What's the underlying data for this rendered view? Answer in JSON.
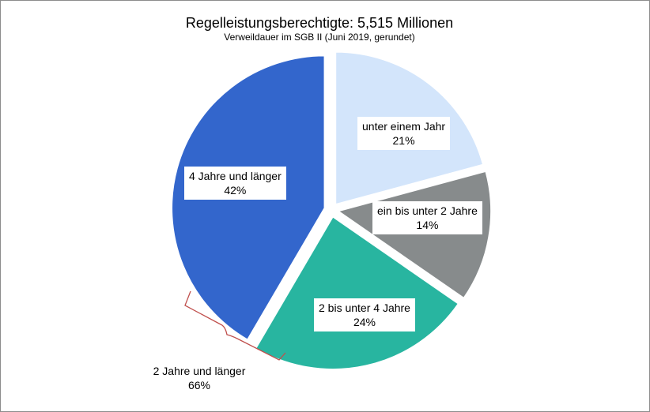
{
  "chart_data": {
    "type": "pie",
    "title": "Regelleistungsberechtigte: 5,515 Millionen",
    "subtitle": "Verweildauer  im SGB II (Juni 2019, gerundet)",
    "slices": [
      {
        "label": "unter einem Jahr",
        "value": 21,
        "value_label": "21%",
        "color": "#d3e5fb"
      },
      {
        "label": "ein bis unter 2 Jahre",
        "value": 14,
        "value_label": "14%",
        "color": "#878b8c"
      },
      {
        "label": "2 bis unter 4 Jahre",
        "value": 24,
        "value_label": "24%",
        "color": "#28b5a0"
      },
      {
        "label": "4 Jahre und länger",
        "value": 42,
        "value_label": "42%",
        "color": "#3366cc"
      }
    ],
    "start_angle_deg": 0,
    "direction": "clockwise",
    "exploded": true,
    "group_annotation": {
      "label": "2 Jahre und länger",
      "value_label": "66%",
      "bracket_color": "#c0504d"
    }
  }
}
